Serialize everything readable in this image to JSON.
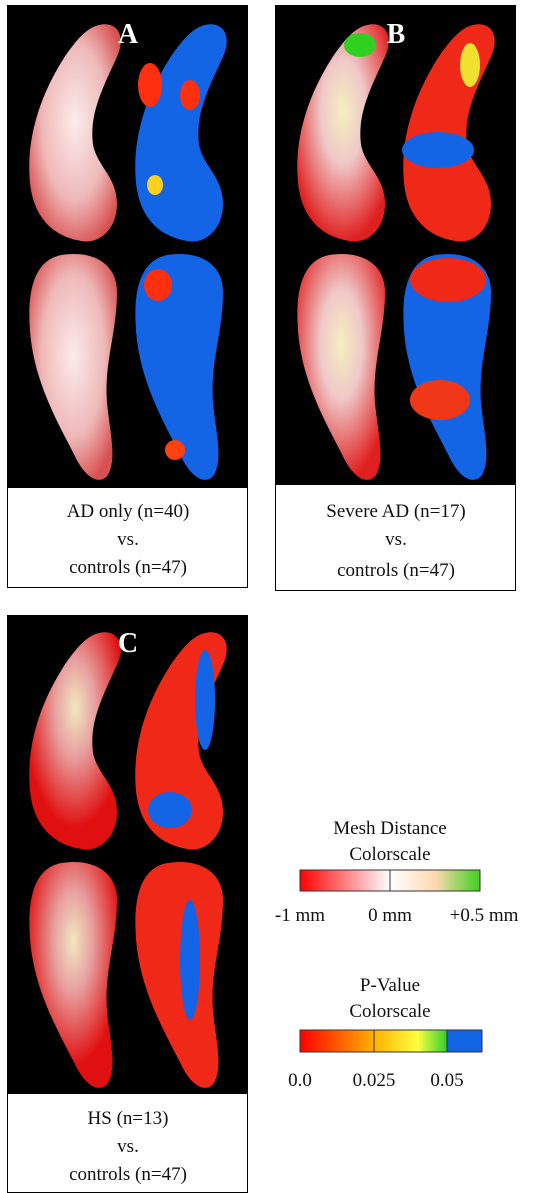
{
  "panels": [
    {
      "label": "A",
      "caption": [
        "AD only (n=40)",
        "vs.",
        "controls (n=47)"
      ]
    },
    {
      "label": "B",
      "caption": [
        "Severe AD (n=17)",
        "vs.",
        "controls (n=47)"
      ]
    },
    {
      "label": "C",
      "caption": [
        "HS (n=13)",
        "vs.",
        "controls (n=47)"
      ]
    }
  ],
  "mesh_colorscale": {
    "title": [
      "Mesh Distance",
      "Colorscale"
    ],
    "labels": [
      "-1 mm",
      "0 mm",
      "+0.5 mm"
    ]
  },
  "p_colorscale": {
    "title": [
      "P-Value",
      "Colorscale"
    ],
    "labels": [
      "0.0",
      "0.025",
      "0.05"
    ]
  }
}
